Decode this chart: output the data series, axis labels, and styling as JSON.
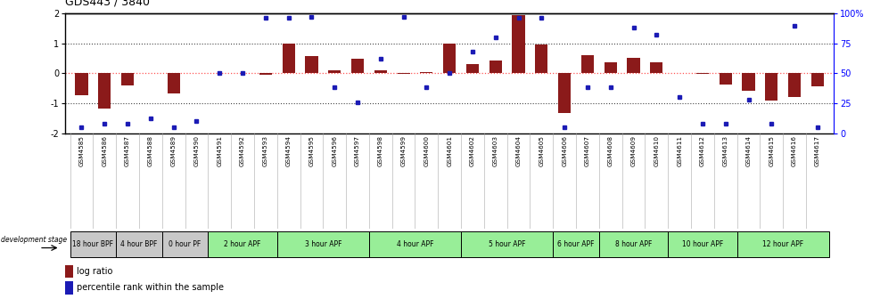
{
  "title": "GDS443 / 3840",
  "samples": [
    "GSM4585",
    "GSM4586",
    "GSM4587",
    "GSM4588",
    "GSM4589",
    "GSM4590",
    "GSM4591",
    "GSM4592",
    "GSM4593",
    "GSM4594",
    "GSM4595",
    "GSM4596",
    "GSM4597",
    "GSM4598",
    "GSM4599",
    "GSM4600",
    "GSM4601",
    "GSM4602",
    "GSM4603",
    "GSM4604",
    "GSM4605",
    "GSM4606",
    "GSM4607",
    "GSM4608",
    "GSM4609",
    "GSM4610",
    "GSM4611",
    "GSM4612",
    "GSM4613",
    "GSM4614",
    "GSM4615",
    "GSM4616",
    "GSM4617"
  ],
  "log_ratio": [
    -0.72,
    -1.18,
    -0.42,
    0.0,
    -0.68,
    0.02,
    0.0,
    0.0,
    -0.04,
    0.98,
    0.58,
    0.1,
    0.48,
    0.1,
    -0.02,
    0.04,
    1.0,
    0.32,
    0.42,
    1.95,
    0.95,
    -1.32,
    0.6,
    0.38,
    0.52,
    0.38,
    0.0,
    -0.02,
    -0.38,
    -0.58,
    -0.92,
    -0.78,
    -0.45
  ],
  "percentile": [
    5,
    8,
    8,
    12,
    5,
    10,
    50,
    50,
    96,
    96,
    97,
    38,
    26,
    62,
    97,
    38,
    50,
    68,
    80,
    96,
    96,
    5,
    38,
    38,
    88,
    82,
    30,
    8,
    8,
    28,
    8,
    90,
    5
  ],
  "bar_color": "#8B1A1A",
  "dot_color": "#1B1BB5",
  "stages": [
    {
      "label": "18 hour BPF",
      "start": 0,
      "end": 2,
      "color": "#C8C8C8"
    },
    {
      "label": "4 hour BPF",
      "start": 2,
      "end": 4,
      "color": "#C8C8C8"
    },
    {
      "label": "0 hour PF",
      "start": 4,
      "end": 6,
      "color": "#C8C8C8"
    },
    {
      "label": "2 hour APF",
      "start": 6,
      "end": 9,
      "color": "#98EE98"
    },
    {
      "label": "3 hour APF",
      "start": 9,
      "end": 13,
      "color": "#98EE98"
    },
    {
      "label": "4 hour APF",
      "start": 13,
      "end": 17,
      "color": "#98EE98"
    },
    {
      "label": "5 hour APF",
      "start": 17,
      "end": 21,
      "color": "#98EE98"
    },
    {
      "label": "6 hour APF",
      "start": 21,
      "end": 23,
      "color": "#98EE98"
    },
    {
      "label": "8 hour APF",
      "start": 23,
      "end": 26,
      "color": "#98EE98"
    },
    {
      "label": "10 hour APF",
      "start": 26,
      "end": 29,
      "color": "#98EE98"
    },
    {
      "label": "12 hour APF",
      "start": 29,
      "end": 33,
      "color": "#98EE98"
    }
  ]
}
